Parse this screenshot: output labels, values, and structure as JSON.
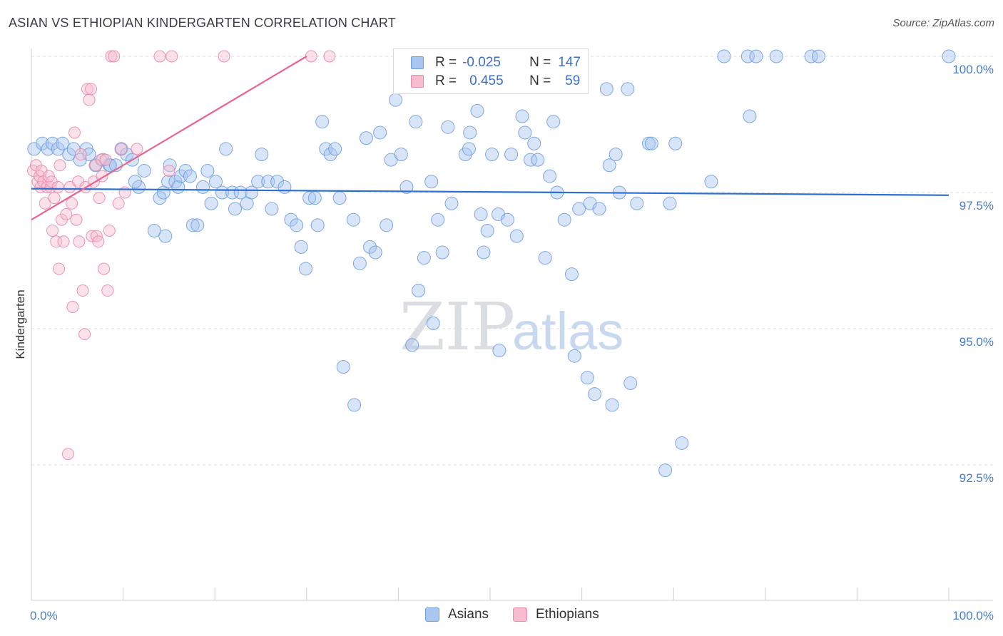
{
  "title": "ASIAN VS ETHIOPIAN KINDERGARTEN CORRELATION CHART",
  "source": "Source: ZipAtlas.com",
  "watermark": {
    "zip": "ZIP",
    "atlas": "atlas"
  },
  "legend": {
    "rows": [
      {
        "r_label": "R =",
        "r_value": "-0.025",
        "n_label": "N =",
        "n_value": "147",
        "color": "#a9c6ef",
        "stroke": "#6f9ee0"
      },
      {
        "r_label": "R =",
        "r_value": "0.455",
        "n_label": "N =",
        "n_value": "59",
        "color": "#f7bcd0",
        "stroke": "#e88aaa"
      }
    ]
  },
  "chart_data": {
    "type": "scatter",
    "title": "ASIAN VS ETHIOPIAN KINDERGARTEN CORRELATION CHART",
    "xlabel": "",
    "ylabel": "Kindergarten",
    "xlim": [
      0,
      100
    ],
    "ylim": [
      90.5,
      100.5
    ],
    "x_tick_labels": [
      "0.0%",
      "100.0%"
    ],
    "y_ticks": [
      100.0,
      97.5,
      95.0,
      92.5
    ],
    "y_tick_labels": [
      "100.0%",
      "97.5%",
      "95.0%",
      "92.5%"
    ],
    "grid": "horizontal dashed",
    "legend_position": "top-center",
    "series": [
      {
        "name": "Asians",
        "color": "#a9c6ef",
        "edge": "#6f9ee0",
        "trend": {
          "x": [
            0,
            100
          ],
          "y": [
            97.57,
            97.45
          ],
          "color": "#2e6fd0"
        },
        "points": [
          [
            0.3,
            98.3
          ],
          [
            1.2,
            98.4
          ],
          [
            1.8,
            98.3
          ],
          [
            2.3,
            98.4
          ],
          [
            2.9,
            98.3
          ],
          [
            3.4,
            98.4
          ],
          [
            4.1,
            98.2
          ],
          [
            4.6,
            98.3
          ],
          [
            5.3,
            98.1
          ],
          [
            6.0,
            98.3
          ],
          [
            6.3,
            98.2
          ],
          [
            7.0,
            98.0
          ],
          [
            7.8,
            98.1
          ],
          [
            8.5,
            98.0
          ],
          [
            8.6,
            98.0
          ],
          [
            9.2,
            98.0
          ],
          [
            9.8,
            98.3
          ],
          [
            10.4,
            98.2
          ],
          [
            11.0,
            98.1
          ],
          [
            11.7,
            97.6
          ],
          [
            11.3,
            97.7
          ],
          [
            12.3,
            97.9
          ],
          [
            13.4,
            96.8
          ],
          [
            14.0,
            97.4
          ],
          [
            14.4,
            97.5
          ],
          [
            14.9,
            97.7
          ],
          [
            14.6,
            96.7
          ],
          [
            15.1,
            98.0
          ],
          [
            15.7,
            97.7
          ],
          [
            16.0,
            97.6
          ],
          [
            16.3,
            97.8
          ],
          [
            16.8,
            97.9
          ],
          [
            17.3,
            97.8
          ],
          [
            17.6,
            96.9
          ],
          [
            18.1,
            96.9
          ],
          [
            18.7,
            97.6
          ],
          [
            19.2,
            97.9
          ],
          [
            19.6,
            97.3
          ],
          [
            20.1,
            97.7
          ],
          [
            20.8,
            97.5
          ],
          [
            21.2,
            98.3
          ],
          [
            21.9,
            97.5
          ],
          [
            22.2,
            97.2
          ],
          [
            22.8,
            97.5
          ],
          [
            23.5,
            97.3
          ],
          [
            24.0,
            97.5
          ],
          [
            24.7,
            97.7
          ],
          [
            25.1,
            98.2
          ],
          [
            25.8,
            97.7
          ],
          [
            26.2,
            97.2
          ],
          [
            26.8,
            97.7
          ],
          [
            27.6,
            97.6
          ],
          [
            28.3,
            97.0
          ],
          [
            28.9,
            96.9
          ],
          [
            29.4,
            96.5
          ],
          [
            29.9,
            96.1
          ],
          [
            30.3,
            97.4
          ],
          [
            30.9,
            97.4
          ],
          [
            31.2,
            96.9
          ],
          [
            31.7,
            98.8
          ],
          [
            32.1,
            98.3
          ],
          [
            32.6,
            98.2
          ],
          [
            33.1,
            98.3
          ],
          [
            33.6,
            97.4
          ],
          [
            34.0,
            94.3
          ],
          [
            35.1,
            97.0
          ],
          [
            35.2,
            93.6
          ],
          [
            35.8,
            96.2
          ],
          [
            36.5,
            98.5
          ],
          [
            36.9,
            96.5
          ],
          [
            37.5,
            96.4
          ],
          [
            38.0,
            98.6
          ],
          [
            38.7,
            96.9
          ],
          [
            39.2,
            98.1
          ],
          [
            39.7,
            99.2
          ],
          [
            40.3,
            98.2
          ],
          [
            40.9,
            97.6
          ],
          [
            41.5,
            94.7
          ],
          [
            41.9,
            98.8
          ],
          [
            42.2,
            95.7
          ],
          [
            42.8,
            96.3
          ],
          [
            43.6,
            97.7
          ],
          [
            43.8,
            95.1
          ],
          [
            44.3,
            97.0
          ],
          [
            44.8,
            96.4
          ],
          [
            45.4,
            98.7
          ],
          [
            45.8,
            97.3
          ],
          [
            46.6,
            99.5
          ],
          [
            47.3,
            98.2
          ],
          [
            47.7,
            98.3
          ],
          [
            47.8,
            98.6
          ],
          [
            48.6,
            99.0
          ],
          [
            49.0,
            97.1
          ],
          [
            49.3,
            96.4
          ],
          [
            49.7,
            96.8
          ],
          [
            50.2,
            98.2
          ],
          [
            50.9,
            97.1
          ],
          [
            51.0,
            94.6
          ],
          [
            51.9,
            97.0
          ],
          [
            52.3,
            98.2
          ],
          [
            52.9,
            96.7
          ],
          [
            53.5,
            98.9
          ],
          [
            53.8,
            98.6
          ],
          [
            54.4,
            98.1
          ],
          [
            54.8,
            98.4
          ],
          [
            55.2,
            98.1
          ],
          [
            56.0,
            96.3
          ],
          [
            56.5,
            97.8
          ],
          [
            56.9,
            98.8
          ],
          [
            57.3,
            97.5
          ],
          [
            58.1,
            97.0
          ],
          [
            58.9,
            96.0
          ],
          [
            59.2,
            94.5
          ],
          [
            59.7,
            97.2
          ],
          [
            60.6,
            94.1
          ],
          [
            60.9,
            97.3
          ],
          [
            61.4,
            93.8
          ],
          [
            61.9,
            97.2
          ],
          [
            62.7,
            99.4
          ],
          [
            63.0,
            98.0
          ],
          [
            63.3,
            93.6
          ],
          [
            63.7,
            98.2
          ],
          [
            64.1,
            97.5
          ],
          [
            65.0,
            99.4
          ],
          [
            65.3,
            94.0
          ],
          [
            66.0,
            97.3
          ],
          [
            67.3,
            98.4
          ],
          [
            67.6,
            98.4
          ],
          [
            69.1,
            92.4
          ],
          [
            69.6,
            97.3
          ],
          [
            70.2,
            98.4
          ],
          [
            70.9,
            92.9
          ],
          [
            74.1,
            97.7
          ],
          [
            75.5,
            100.0
          ],
          [
            78.1,
            100.0
          ],
          [
            78.3,
            98.9
          ],
          [
            79.0,
            100.0
          ],
          [
            81.2,
            100.0
          ],
          [
            85.0,
            100.0
          ],
          [
            85.8,
            100.0
          ],
          [
            100.0,
            100.0
          ]
        ]
      },
      {
        "name": "Ethiopians",
        "color": "#f7bcd0",
        "edge": "#e88aaa",
        "trend": {
          "x": [
            0,
            30
          ],
          "y": [
            97.0,
            100.0
          ],
          "color": "#e8648e"
        },
        "points": [
          [
            0.2,
            97.9
          ],
          [
            0.5,
            98.0
          ],
          [
            0.7,
            97.7
          ],
          [
            0.9,
            97.8
          ],
          [
            1.0,
            97.6
          ],
          [
            1.1,
            97.9
          ],
          [
            1.3,
            97.7
          ],
          [
            1.5,
            97.3
          ],
          [
            1.7,
            97.6
          ],
          [
            1.9,
            97.8
          ],
          [
            2.1,
            97.6
          ],
          [
            2.2,
            97.7
          ],
          [
            2.3,
            96.8
          ],
          [
            2.5,
            97.4
          ],
          [
            2.7,
            96.6
          ],
          [
            2.9,
            97.6
          ],
          [
            3.0,
            96.1
          ],
          [
            3.1,
            98.0
          ],
          [
            3.3,
            97.0
          ],
          [
            3.5,
            96.6
          ],
          [
            3.8,
            97.1
          ],
          [
            4.0,
            92.7
          ],
          [
            4.2,
            97.6
          ],
          [
            4.4,
            97.3
          ],
          [
            4.5,
            95.4
          ],
          [
            4.7,
            98.6
          ],
          [
            4.9,
            97.0
          ],
          [
            5.1,
            97.7
          ],
          [
            5.2,
            96.6
          ],
          [
            5.4,
            98.2
          ],
          [
            5.6,
            95.7
          ],
          [
            5.8,
            94.9
          ],
          [
            5.9,
            97.6
          ],
          [
            6.1,
            99.4
          ],
          [
            6.3,
            99.2
          ],
          [
            6.5,
            99.4
          ],
          [
            6.6,
            96.7
          ],
          [
            6.8,
            97.7
          ],
          [
            7.0,
            98.0
          ],
          [
            7.1,
            96.7
          ],
          [
            7.3,
            96.6
          ],
          [
            7.4,
            97.4
          ],
          [
            7.6,
            98.1
          ],
          [
            7.7,
            97.8
          ],
          [
            7.9,
            96.1
          ],
          [
            8.1,
            98.1
          ],
          [
            8.3,
            95.7
          ],
          [
            8.5,
            96.8
          ],
          [
            8.7,
            100.0
          ],
          [
            9.0,
            100.0
          ],
          [
            9.5,
            97.3
          ],
          [
            9.8,
            98.3
          ],
          [
            10.2,
            97.5
          ],
          [
            11.5,
            98.3
          ],
          [
            14.0,
            100.0
          ],
          [
            15.0,
            97.9
          ],
          [
            15.3,
            100.0
          ],
          [
            21.0,
            100.0
          ],
          [
            30.5,
            100.0
          ],
          [
            32.5,
            100.0
          ]
        ]
      }
    ]
  }
}
